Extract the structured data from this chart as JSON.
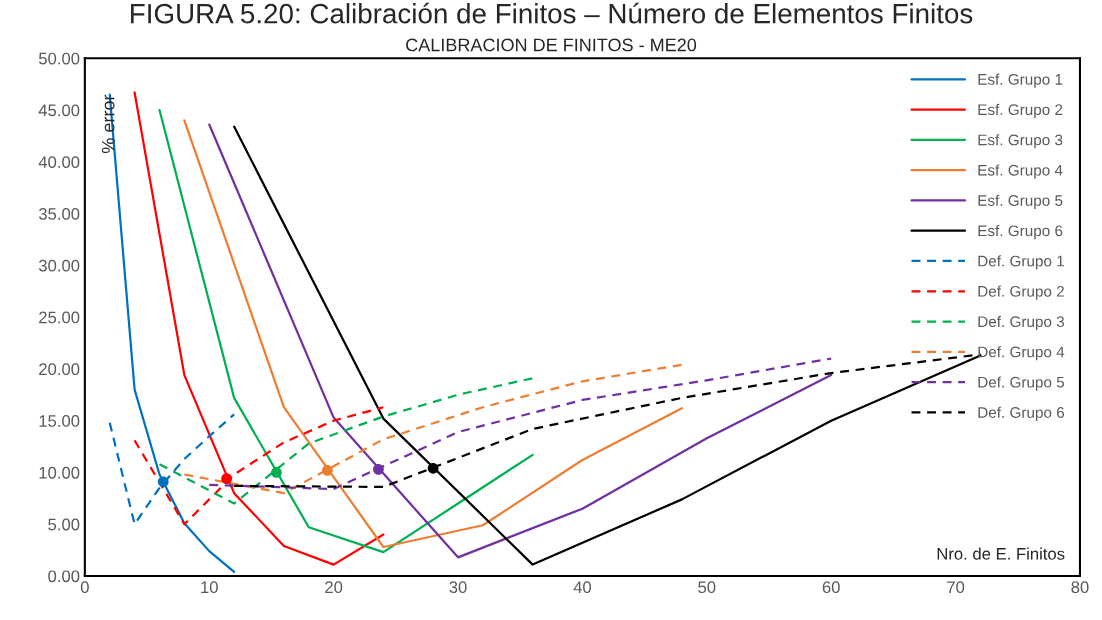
{
  "chart_data": {
    "type": "line",
    "title": "FIGURA 5.20: Calibración de Finitos – Número de Elementos Finitos",
    "subtitle": "CALIBRACION DE FINITOS - ME20",
    "xlabel": "Nro. de E. Finitos",
    "ylabel": "% error",
    "xlim": [
      0,
      80
    ],
    "xticks": [
      0,
      10,
      20,
      30,
      40,
      50,
      60,
      70,
      80
    ],
    "ylim": [
      0,
      50
    ],
    "yticks": [
      {
        "value": 0,
        "label": "0.00"
      },
      {
        "value": 5,
        "label": "5.00"
      },
      {
        "value": 10,
        "label": "10.00"
      },
      {
        "value": 15,
        "label": "15.00"
      },
      {
        "value": 20,
        "label": "20.00"
      },
      {
        "value": 25,
        "label": "25.00"
      },
      {
        "value": 30,
        "label": "30.00"
      },
      {
        "value": 35,
        "label": "35.00"
      },
      {
        "value": 40,
        "label": "40.00"
      },
      {
        "value": 45,
        "label": "45.00"
      },
      {
        "value": 50,
        "label": "50.00"
      }
    ],
    "grid": false,
    "legend": "top right",
    "marker": "none",
    "series": [
      {
        "name": "Esf. Grupo 1",
        "color": "#0070c0",
        "line_style": "solid",
        "x": [
          2,
          4,
          6,
          8,
          10,
          12
        ],
        "values": [
          46.5,
          18.0,
          9.8,
          5.1,
          2.4,
          0.4
        ]
      },
      {
        "name": "Esf. Grupo 2",
        "color": "#ff0000",
        "line_style": "solid",
        "x": [
          4,
          8,
          12,
          16,
          20,
          24
        ],
        "values": [
          46.7,
          19.4,
          8.0,
          2.9,
          1.1,
          4.0
        ]
      },
      {
        "name": "Esf. Grupo 3",
        "color": "#00b050",
        "line_style": "solid",
        "x": [
          6,
          12,
          18,
          24,
          30,
          36
        ],
        "values": [
          45.0,
          17.2,
          4.7,
          2.3,
          7.0,
          11.7
        ]
      },
      {
        "name": "Esf. Grupo 4",
        "color": "#ed7d31",
        "line_style": "solid",
        "x": [
          8,
          16,
          24,
          32,
          40,
          48
        ],
        "values": [
          44.0,
          16.3,
          2.8,
          4.9,
          11.2,
          16.2
        ]
      },
      {
        "name": "Esf. Grupo 5",
        "color": "#7030a0",
        "line_style": "solid",
        "x": [
          10,
          20,
          30,
          40,
          50,
          60
        ],
        "values": [
          43.6,
          15.3,
          1.8,
          6.5,
          13.3,
          19.4
        ]
      },
      {
        "name": "Esf. Grupo 6",
        "color": "#000000",
        "line_style": "solid",
        "x": [
          12,
          24,
          36,
          48,
          60,
          72
        ],
        "values": [
          43.4,
          15.2,
          1.1,
          7.4,
          15.0,
          21.3
        ]
      },
      {
        "name": "Def. Grupo 1",
        "color": "#0070c0",
        "line_style": "dashed",
        "x": [
          2,
          4,
          6,
          8,
          10,
          12
        ],
        "values": [
          14.8,
          5.0,
          8.5,
          11.3,
          13.5,
          15.6
        ]
      },
      {
        "name": "Def. Grupo 2",
        "color": "#ff0000",
        "line_style": "dashed",
        "x": [
          4,
          8,
          12,
          16,
          20,
          24
        ],
        "values": [
          13.1,
          5.0,
          9.8,
          12.9,
          15.0,
          16.3
        ]
      },
      {
        "name": "Def. Grupo 3",
        "color": "#00b050",
        "line_style": "dashed",
        "x": [
          6,
          12,
          18,
          24,
          30,
          36
        ],
        "values": [
          10.8,
          7.0,
          12.8,
          15.4,
          17.5,
          19.1
        ]
      },
      {
        "name": "Def. Grupo 4",
        "color": "#ed7d31",
        "line_style": "dashed",
        "x": [
          8,
          16,
          24,
          32,
          40,
          48
        ],
        "values": [
          9.8,
          8.0,
          13.2,
          16.3,
          18.8,
          20.4
        ]
      },
      {
        "name": "Def. Grupo 5",
        "color": "#7030a0",
        "line_style": "dashed",
        "x": [
          10,
          20,
          30,
          40,
          50,
          60
        ],
        "values": [
          8.8,
          8.4,
          13.9,
          17.0,
          18.9,
          21.0
        ]
      },
      {
        "name": "Def. Grupo 6",
        "color": "#000000",
        "line_style": "dashed",
        "x": [
          12,
          24,
          36,
          48,
          60,
          72
        ],
        "values": [
          8.7,
          8.6,
          14.2,
          17.2,
          19.6,
          21.4
        ]
      },
      {
        "type": "scatter",
        "marker": "circle",
        "x": [
          6.3,
          11.4,
          15.4,
          19.5,
          23.6,
          28.0
        ],
        "values": [
          9.1,
          9.4,
          10.0,
          10.2,
          10.3,
          10.4
        ],
        "colors": [
          "#0070c0",
          "#ff0000",
          "#00b050",
          "#ed7d31",
          "#7030a0",
          "#000000"
        ]
      }
    ]
  }
}
